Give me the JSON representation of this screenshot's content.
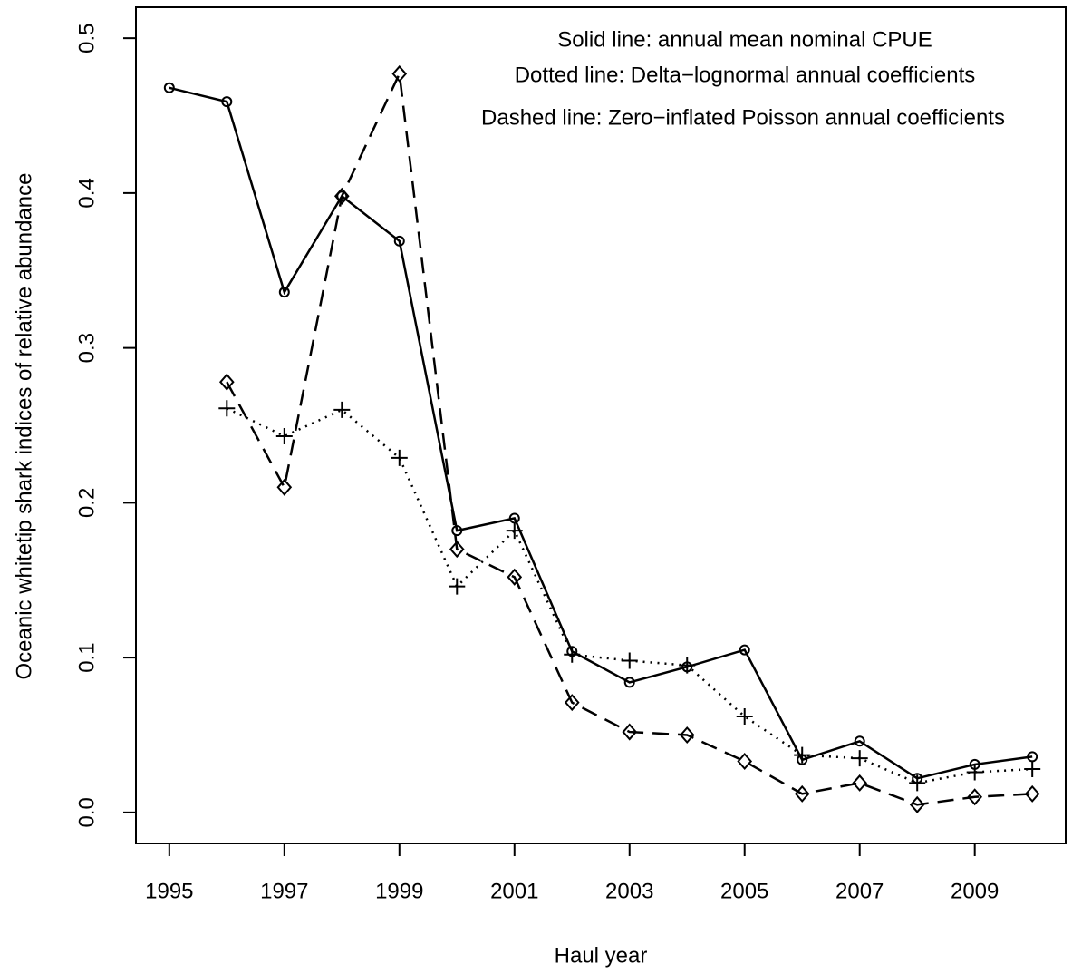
{
  "chart_data": {
    "type": "line",
    "x_label": "Haul year",
    "y_label": "Oceanic whitetip shark indices of relative abundance",
    "annotations": [
      "Solid line: annual mean nominal CPUE",
      "Dotted line: Delta−lognormal annual coefficients",
      "Dashed line: Zero−inflated Poisson annual coefficients"
    ],
    "x": [
      1995,
      1996,
      1997,
      1998,
      1999,
      2000,
      2001,
      2002,
      2003,
      2004,
      2005,
      2006,
      2007,
      2008,
      2009,
      2010
    ],
    "series": [
      {
        "color": "#000000",
        "line_style": "solid",
        "marker": "circle",
        "values": [
          0.468,
          0.459,
          0.336,
          0.398,
          0.369,
          0.182,
          0.19,
          0.104,
          0.084,
          0.094,
          0.105,
          0.034,
          0.046,
          0.022,
          0.031,
          0.036
        ]
      },
      {
        "color": "#000000",
        "line_style": "dotted",
        "marker": "plus",
        "values": [
          null,
          0.261,
          0.243,
          0.26,
          0.229,
          0.146,
          0.182,
          0.102,
          0.098,
          0.095,
          0.062,
          0.037,
          0.035,
          0.019,
          0.026,
          0.028
        ]
      },
      {
        "color": "#000000",
        "line_style": "dashed",
        "marker": "diamond",
        "values": [
          null,
          0.278,
          0.21,
          0.398,
          0.477,
          0.17,
          0.152,
          0.071,
          0.052,
          0.05,
          0.033,
          0.012,
          0.019,
          0.005,
          0.01,
          0.012
        ]
      }
    ],
    "xlim": [
      1994.42,
      2010.58
    ],
    "ylim": [
      -0.02,
      0.52
    ],
    "xticks": [
      1995,
      1997,
      1999,
      2001,
      2003,
      2005,
      2007,
      2009
    ],
    "yticks": [
      {
        "value": 0,
        "label": "0.0"
      },
      0.1,
      0.2,
      0.3,
      0.4,
      0.5
    ],
    "grid": false
  }
}
